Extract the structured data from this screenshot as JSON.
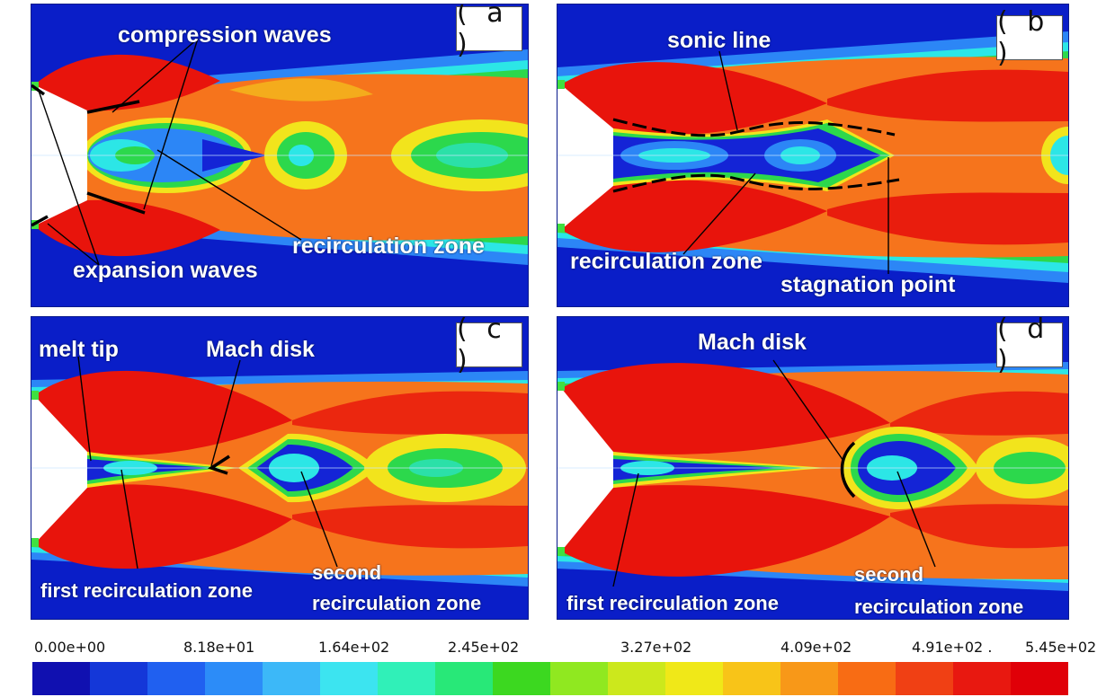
{
  "panels": {
    "a": {
      "tag": "( a )",
      "labels": {
        "compression_waves": "compression waves",
        "recirculation_zone": "recirculation zone",
        "expansion_waves": "expansion waves"
      }
    },
    "b": {
      "tag": "( b )",
      "labels": {
        "sonic_line": "sonic line",
        "recirculation_zone": "recirculation zone",
        "stagnation_point": "stagnation point"
      }
    },
    "c": {
      "tag": "( c )",
      "labels": {
        "melt_tip": "melt tip",
        "mach_disk": "Mach disk",
        "first_recirculation_zone": "first recirculation zone",
        "second_line1": "second",
        "second_line2": "recirculation zone"
      }
    },
    "d": {
      "tag": "( d )",
      "labels": {
        "mach_disk": "Mach disk",
        "first_recirculation_zone": "first recirculation zone",
        "second_line1": "second",
        "second_line2": "recirculation zone"
      }
    }
  },
  "colorbar": {
    "ticks": [
      "0.00e+00",
      "8.18e+01",
      "1.64e+02",
      "2.45e+02",
      "3.27e+02",
      "4.09e+02",
      "4.91e+02 .",
      "5.45e+02"
    ],
    "colors": [
      "#1010b0",
      "#1437d8",
      "#2060f0",
      "#2c8cf8",
      "#3cb8f8",
      "#3ce4f0",
      "#30f0b8",
      "#28e878",
      "#3cd820",
      "#90e820",
      "#cce81c",
      "#f0e818",
      "#f8c418",
      "#f89818",
      "#f86c14",
      "#f04014",
      "#e81810",
      "#e00008"
    ]
  },
  "palette": {
    "background": "#0a1ec8",
    "red": "#e8140c",
    "orange": "#f6741c",
    "yellow": "#f2e41c",
    "green": "#2cd84c",
    "cyan": "#2ce6e6",
    "lightblue": "#2c86f6",
    "blue": "#1424d6"
  }
}
